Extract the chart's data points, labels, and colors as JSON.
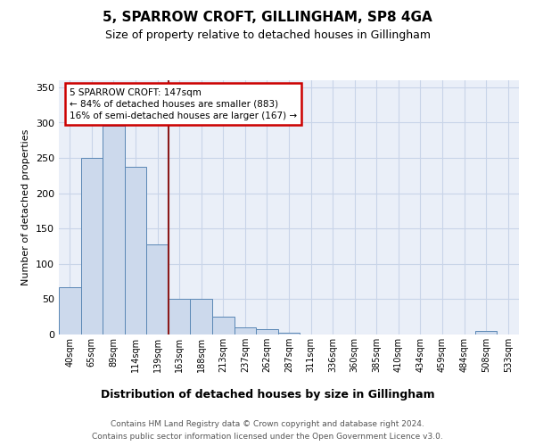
{
  "title": "5, SPARROW CROFT, GILLINGHAM, SP8 4GA",
  "subtitle": "Size of property relative to detached houses in Gillingham",
  "xlabel": "Distribution of detached houses by size in Gillingham",
  "ylabel": "Number of detached properties",
  "categories": [
    "40sqm",
    "65sqm",
    "89sqm",
    "114sqm",
    "139sqm",
    "163sqm",
    "188sqm",
    "213sqm",
    "237sqm",
    "262sqm",
    "287sqm",
    "311sqm",
    "336sqm",
    "360sqm",
    "385sqm",
    "410sqm",
    "434sqm",
    "459sqm",
    "484sqm",
    "508sqm",
    "533sqm"
  ],
  "values": [
    67,
    250,
    295,
    237,
    128,
    50,
    50,
    25,
    10,
    8,
    3,
    0,
    0,
    0,
    0,
    0,
    0,
    0,
    0,
    5,
    0
  ],
  "bar_color": "#ccd9ec",
  "bar_edge_color": "#5a87b5",
  "grid_color": "#c8d4e8",
  "background_color": "#eaeff8",
  "vline_x": 4.5,
  "vline_color": "#8b1a1a",
  "annotation_line1": "5 SPARROW CROFT: 147sqm",
  "annotation_line2": "← 84% of detached houses are smaller (883)",
  "annotation_line3": "16% of semi-detached houses are larger (167) →",
  "annotation_box_facecolor": "#ffffff",
  "annotation_box_edgecolor": "#cc0000",
  "ylim": [
    0,
    360
  ],
  "yticks": [
    0,
    50,
    100,
    150,
    200,
    250,
    300,
    350
  ],
  "footer_line1": "Contains HM Land Registry data © Crown copyright and database right 2024.",
  "footer_line2": "Contains public sector information licensed under the Open Government Licence v3.0."
}
